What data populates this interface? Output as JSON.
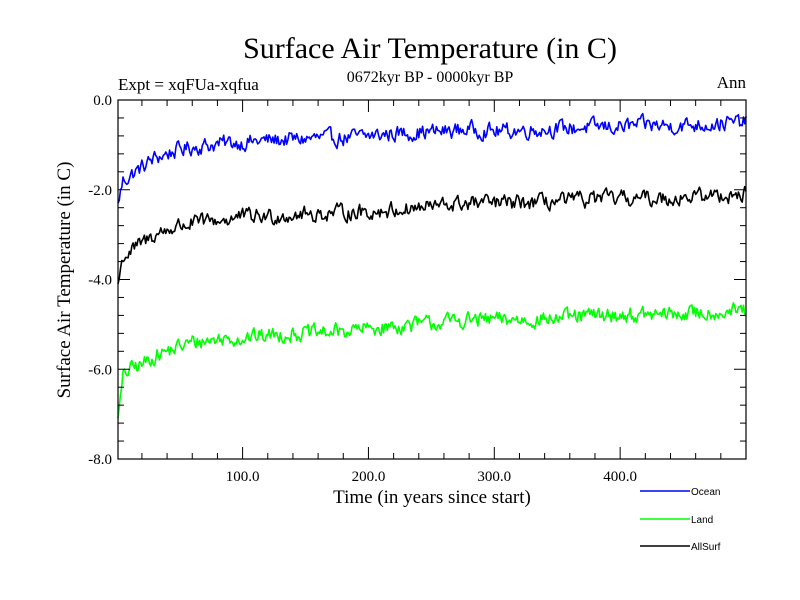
{
  "chart_data": {
    "type": "line",
    "title": "Surface Air Temperature (in C)",
    "subtitle": "0672kyr BP - 0000kyr BP",
    "expt_label": "Expt = xqFUa-xqfua",
    "season_label": "Ann",
    "xlabel": "Time (in years since start)",
    "ylabel": "Surface Air Temperature (in C)",
    "xlim": [
      1,
      500
    ],
    "ylim": [
      -8.0,
      0.0
    ],
    "x_ticks": [
      100,
      200,
      300,
      400
    ],
    "x_tick_labels": [
      "100.0",
      "200.0",
      "300.0",
      "400.0"
    ],
    "y_ticks": [
      0,
      -2,
      -4,
      -6,
      -8
    ],
    "y_tick_labels": [
      "0.0",
      "-2.0",
      "-4.0",
      "-6.0",
      "-8.0"
    ],
    "series": [
      {
        "name": "Ocean",
        "color": "#0000ff",
        "x": [
          1,
          5,
          10,
          20,
          30,
          40,
          50,
          60,
          75,
          90,
          100,
          120,
          140,
          160,
          180,
          200,
          220,
          240,
          260,
          280,
          300,
          320,
          340,
          360,
          380,
          400,
          420,
          440,
          460,
          480,
          500
        ],
        "values": [
          -2.3,
          -1.8,
          -1.7,
          -1.5,
          -1.3,
          -1.2,
          -1.1,
          -1.05,
          -1.0,
          -0.95,
          -0.95,
          -0.9,
          -0.88,
          -0.85,
          -0.85,
          -0.8,
          -0.75,
          -0.72,
          -0.7,
          -0.65,
          -0.7,
          -0.68,
          -0.65,
          -0.63,
          -0.6,
          -0.6,
          -0.55,
          -0.58,
          -0.55,
          -0.52,
          -0.5
        ]
      },
      {
        "name": "Land",
        "color": "#00ff00",
        "x": [
          1,
          5,
          10,
          20,
          30,
          40,
          50,
          60,
          75,
          90,
          100,
          120,
          140,
          160,
          180,
          200,
          220,
          240,
          260,
          280,
          300,
          320,
          340,
          360,
          380,
          400,
          420,
          440,
          460,
          480,
          500
        ],
        "values": [
          -7.1,
          -6.2,
          -6.0,
          -5.9,
          -5.7,
          -5.6,
          -5.5,
          -5.4,
          -5.35,
          -5.3,
          -5.3,
          -5.25,
          -5.2,
          -5.2,
          -5.15,
          -5.1,
          -5.05,
          -5.0,
          -4.95,
          -4.9,
          -4.9,
          -4.9,
          -4.88,
          -4.85,
          -4.8,
          -4.8,
          -4.8,
          -4.78,
          -4.75,
          -4.72,
          -4.7
        ]
      },
      {
        "name": "AllSurf",
        "color": "#000000",
        "x": [
          1,
          5,
          10,
          20,
          30,
          40,
          50,
          60,
          75,
          90,
          100,
          120,
          140,
          160,
          180,
          200,
          220,
          240,
          260,
          280,
          300,
          320,
          340,
          360,
          380,
          400,
          420,
          440,
          460,
          480,
          500
        ],
        "values": [
          -4.1,
          -3.5,
          -3.4,
          -3.2,
          -3.0,
          -2.9,
          -2.8,
          -2.75,
          -2.7,
          -2.65,
          -2.6,
          -2.6,
          -2.55,
          -2.55,
          -2.5,
          -2.5,
          -2.45,
          -2.4,
          -2.35,
          -2.3,
          -2.3,
          -2.3,
          -2.28,
          -2.25,
          -2.2,
          -2.2,
          -2.2,
          -2.18,
          -2.15,
          -2.12,
          -2.1
        ]
      }
    ],
    "noise_amplitude": 0.28,
    "legend_position": "bottom-right"
  }
}
